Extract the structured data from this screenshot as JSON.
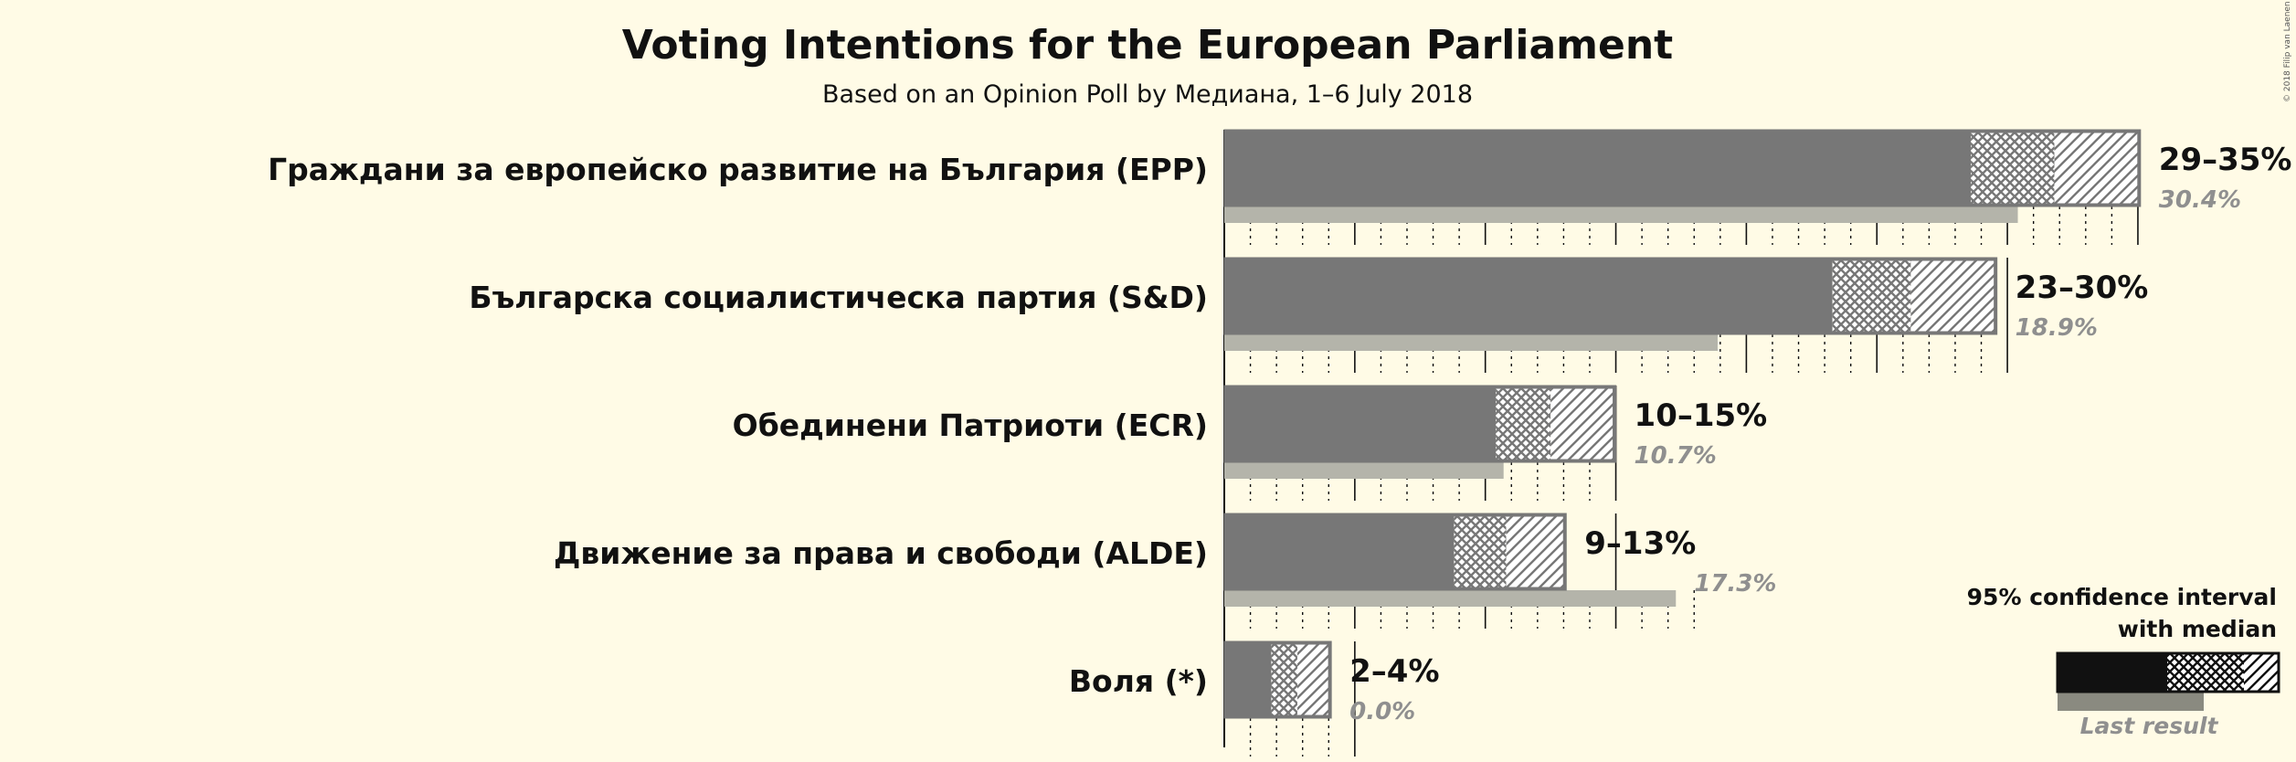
{
  "title": "Voting Intentions for the European Parliament",
  "subtitle": "Based on an Opinion Poll by Медиана, 1–6 July 2018",
  "copyright": "© 2018 Filip van Laenen",
  "colors": {
    "background": "#fffbe6",
    "bar": "#777777",
    "last_result": "#b4b4aa",
    "outline": "#777777",
    "legend_bar": "#111111",
    "legend_last": "#8a8a80"
  },
  "legend": {
    "line1": "95% confidence interval",
    "line2": "with median",
    "last_result": "Last result"
  },
  "chart_data": {
    "type": "bar",
    "orientation": "horizontal",
    "title": "Voting Intentions for the European Parliament",
    "subtitle": "Based on an Opinion Poll by Медиана, 1–6 July 2018",
    "unit": "%",
    "xlim": [
      0,
      35
    ],
    "gridlines": {
      "major_every": 5,
      "minor_every": 1
    },
    "series": [
      {
        "party": "Граждани за европейско развитие на България (EPP)",
        "ci_low": 28.6,
        "median": 31.8,
        "ci_high": 35.1,
        "last_result": 30.4,
        "range_label": "29–35%",
        "last_label": "30.4%"
      },
      {
        "party": "Българска социалистическа партия (S&D)",
        "ci_low": 23.3,
        "median": 26.3,
        "ci_high": 29.6,
        "last_result": 18.9,
        "range_label": "23–30%",
        "last_label": "18.9%"
      },
      {
        "party": "Обединени Патриоти (ECR)",
        "ci_low": 10.4,
        "median": 12.5,
        "ci_high": 15.0,
        "last_result": 10.7,
        "range_label": "10–15%",
        "last_label": "10.7%"
      },
      {
        "party": "Движение за права и свободи (ALDE)",
        "ci_low": 8.8,
        "median": 10.8,
        "ci_high": 13.1,
        "last_result": 17.3,
        "range_label": "9–13%",
        "last_label": "17.3%"
      },
      {
        "party": "Воля (*)",
        "ci_low": 1.8,
        "median": 2.8,
        "ci_high": 4.1,
        "last_result": 0.0,
        "range_label": "2–4%",
        "last_label": "0.0%"
      }
    ]
  }
}
